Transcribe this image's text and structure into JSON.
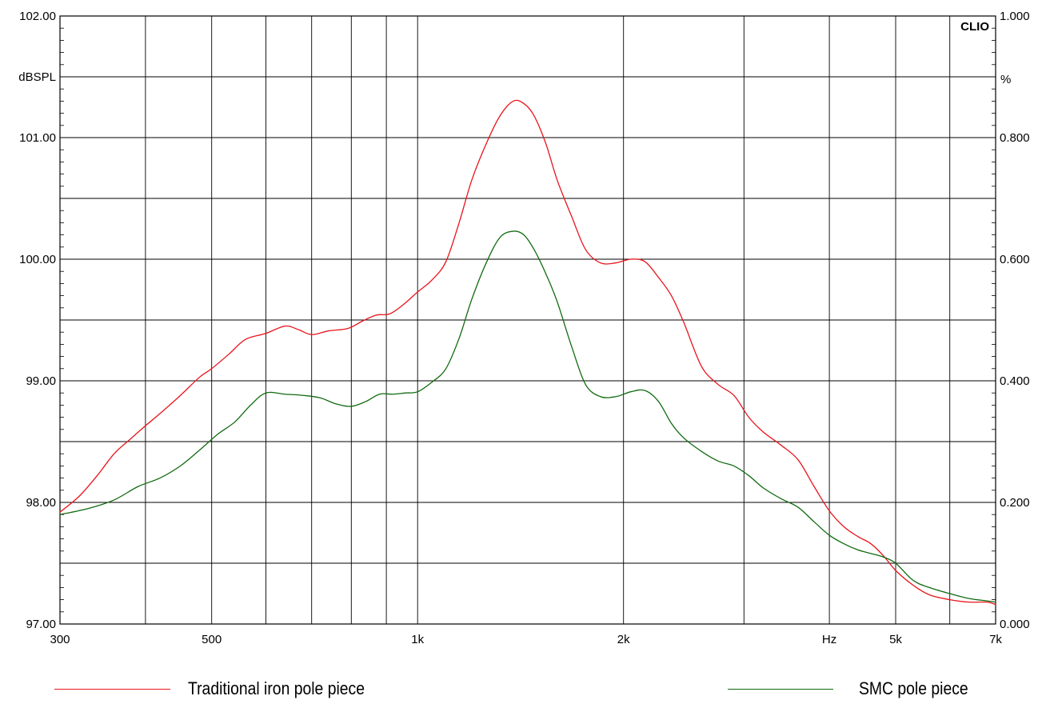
{
  "chart_data": {
    "type": "line",
    "x_scale": "log",
    "x_unit": "Hz",
    "xlim": [
      300,
      7000
    ],
    "x_tick_labels": [
      {
        "value": 300,
        "label": "300"
      },
      {
        "value": 500,
        "label": "500"
      },
      {
        "value": 1000,
        "label": "1k"
      },
      {
        "value": 2000,
        "label": "2k"
      },
      {
        "value": 5000,
        "label": "5k"
      },
      {
        "value": 7000,
        "label": "7k"
      }
    ],
    "x_gridlines": [
      400,
      500,
      600,
      700,
      800,
      900,
      1000,
      2000,
      3000,
      4000,
      5000,
      6000
    ],
    "ylim": [
      97,
      102
    ],
    "y_unit": "dBSPL",
    "y_tick_labels": [
      "97.00",
      "98.00",
      "99.00",
      "100.00",
      "101.00",
      "102.00"
    ],
    "y2lim": [
      0,
      1
    ],
    "y2_unit": "%",
    "y2_tick_labels": [
      "0.000",
      "0.200",
      "0.400",
      "0.600",
      "0.800",
      "1.000"
    ],
    "grid": true,
    "brand": "CLIO",
    "series": [
      {
        "name": "Traditional iron pole piece",
        "color": "#e8141c",
        "x": [
          300,
          320,
          340,
          360,
          380,
          400,
          420,
          450,
          480,
          500,
          530,
          560,
          600,
          640,
          670,
          700,
          740,
          790,
          830,
          870,
          910,
          950,
          1000,
          1050,
          1100,
          1150,
          1200,
          1260,
          1320,
          1380,
          1430,
          1480,
          1540,
          1600,
          1680,
          1760,
          1850,
          1950,
          2050,
          2150,
          2250,
          2350,
          2450,
          2600,
          2750,
          2900,
          3050,
          3200,
          3400,
          3600,
          3800,
          4000,
          4200,
          4400,
          4600,
          4800,
          5000,
          5300,
          5600,
          6000,
          6400,
          6800,
          7000
        ],
        "y": [
          97.92,
          98.05,
          98.22,
          98.4,
          98.52,
          98.63,
          98.73,
          98.88,
          99.03,
          99.1,
          99.22,
          99.34,
          99.39,
          99.45,
          99.42,
          99.38,
          99.41,
          99.43,
          99.49,
          99.54,
          99.55,
          99.62,
          99.73,
          99.83,
          99.98,
          100.3,
          100.65,
          100.95,
          101.18,
          101.3,
          101.28,
          101.18,
          100.95,
          100.65,
          100.35,
          100.08,
          99.97,
          99.97,
          100.0,
          99.98,
          99.85,
          99.7,
          99.48,
          99.12,
          98.97,
          98.88,
          98.7,
          98.58,
          98.47,
          98.35,
          98.13,
          97.93,
          97.8,
          97.72,
          97.66,
          97.56,
          97.44,
          97.32,
          97.24,
          97.2,
          97.18,
          97.18,
          97.16
        ]
      },
      {
        "name": "SMC pole piece",
        "color": "#116b11",
        "x": [
          300,
          330,
          360,
          390,
          420,
          450,
          480,
          510,
          540,
          570,
          600,
          640,
          680,
          720,
          760,
          800,
          840,
          880,
          920,
          960,
          1000,
          1050,
          1100,
          1150,
          1200,
          1260,
          1320,
          1380,
          1430,
          1480,
          1540,
          1600,
          1680,
          1760,
          1850,
          1950,
          2050,
          2150,
          2250,
          2350,
          2450,
          2600,
          2750,
          2900,
          3050,
          3200,
          3400,
          3600,
          3800,
          4000,
          4200,
          4400,
          4600,
          4800,
          5000,
          5300,
          5600,
          6000,
          6400,
          6800,
          7000
        ],
        "y": [
          97.9,
          97.95,
          98.02,
          98.13,
          98.2,
          98.3,
          98.43,
          98.56,
          98.66,
          98.8,
          98.9,
          98.89,
          98.88,
          98.86,
          98.81,
          98.79,
          98.83,
          98.89,
          98.89,
          98.9,
          98.91,
          98.99,
          99.1,
          99.35,
          99.67,
          99.97,
          100.18,
          100.23,
          100.2,
          100.08,
          99.88,
          99.65,
          99.28,
          98.97,
          98.87,
          98.87,
          98.91,
          98.92,
          98.83,
          98.65,
          98.53,
          98.42,
          98.34,
          98.3,
          98.22,
          98.12,
          98.03,
          97.96,
          97.84,
          97.73,
          97.66,
          97.61,
          97.58,
          97.55,
          97.5,
          97.36,
          97.3,
          97.25,
          97.21,
          97.19,
          97.18
        ]
      }
    ]
  }
}
